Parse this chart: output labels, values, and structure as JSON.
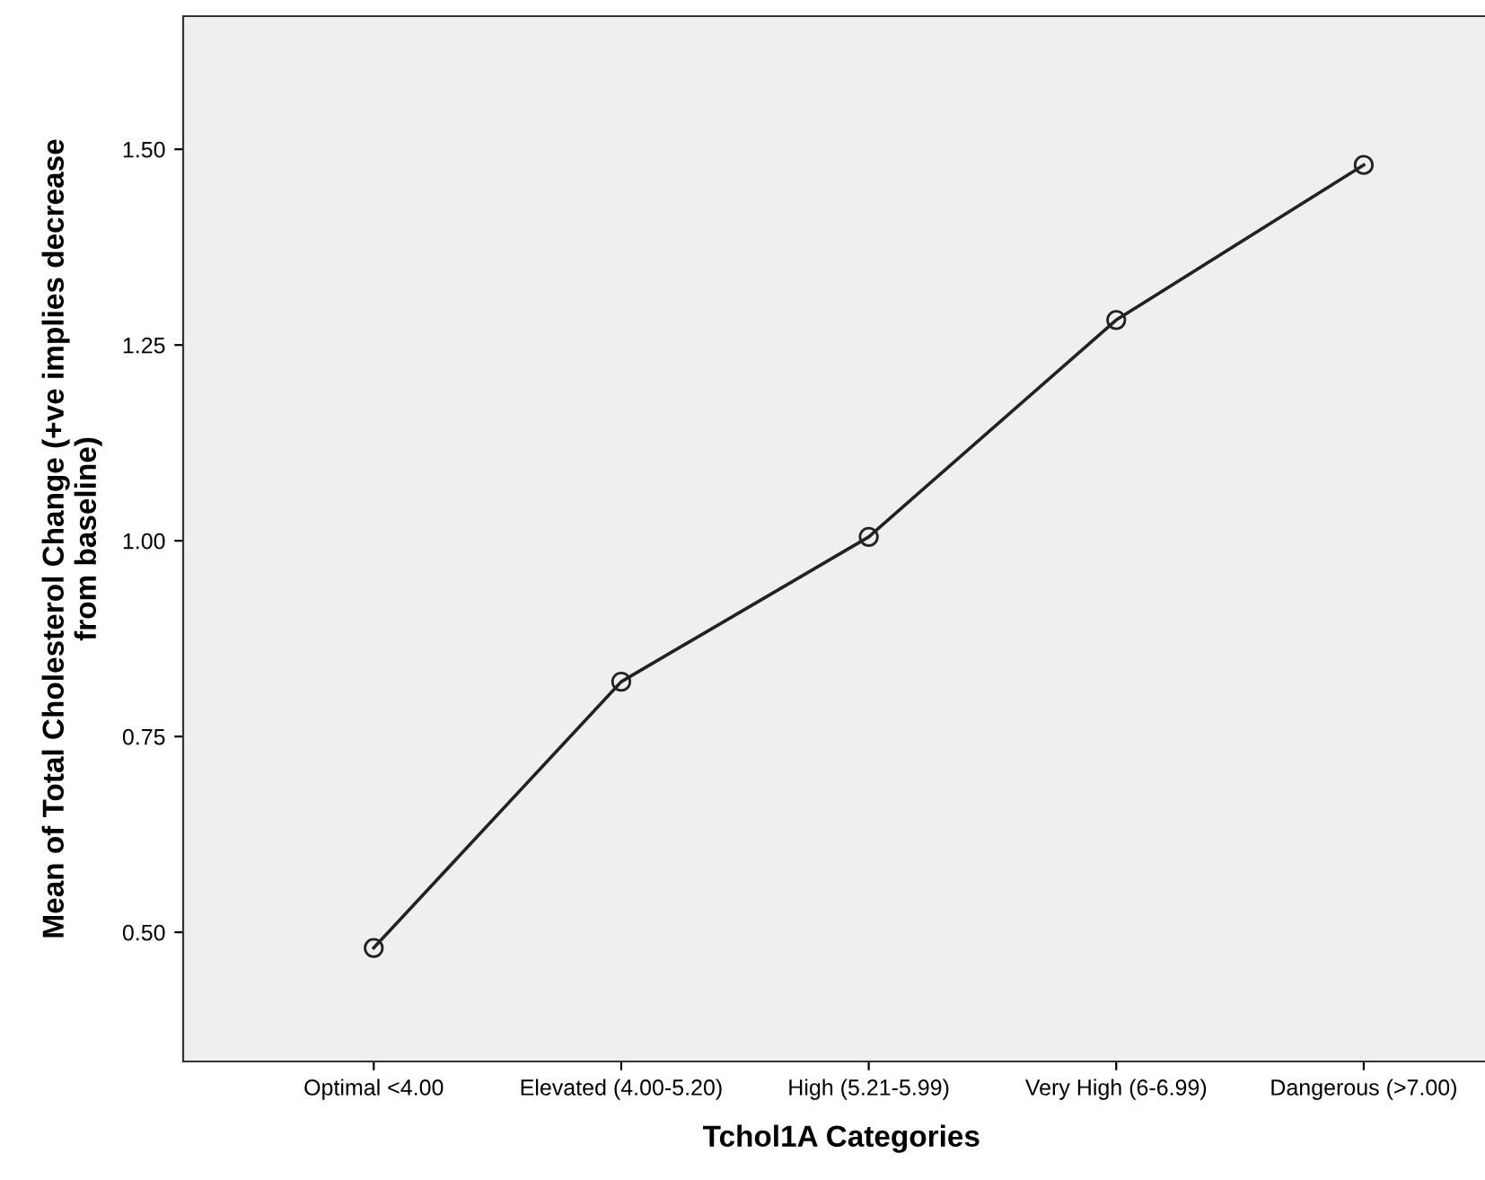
{
  "chart_data": {
    "type": "line",
    "xlabel": "Tchol1A Categories",
    "ylabel": "Mean of Total Cholesterol Change (+ve implies decrease\nfrom baseline)",
    "categories": [
      "Optimal <4.00",
      "Elevated (4.00-5.20)",
      "High (5.21-5.99)",
      "Very High (6-6.99)",
      "Dangerous (>7.00)"
    ],
    "values": [
      0.48,
      0.82,
      1.005,
      1.282,
      1.48
    ],
    "color": "#222222",
    "marker": "circle",
    "line_style": "solid",
    "ylim": [
      0.335,
      1.67
    ],
    "yticks": [
      {
        "value": 0.5,
        "label": "0.50"
      },
      {
        "value": 0.75,
        "label": "0.75"
      },
      {
        "value": 1.0,
        "label": "1.00"
      },
      {
        "value": 1.25,
        "label": "1.25"
      },
      {
        "value": 1.5,
        "label": "1.50"
      }
    ],
    "grid": false,
    "legend": false
  }
}
